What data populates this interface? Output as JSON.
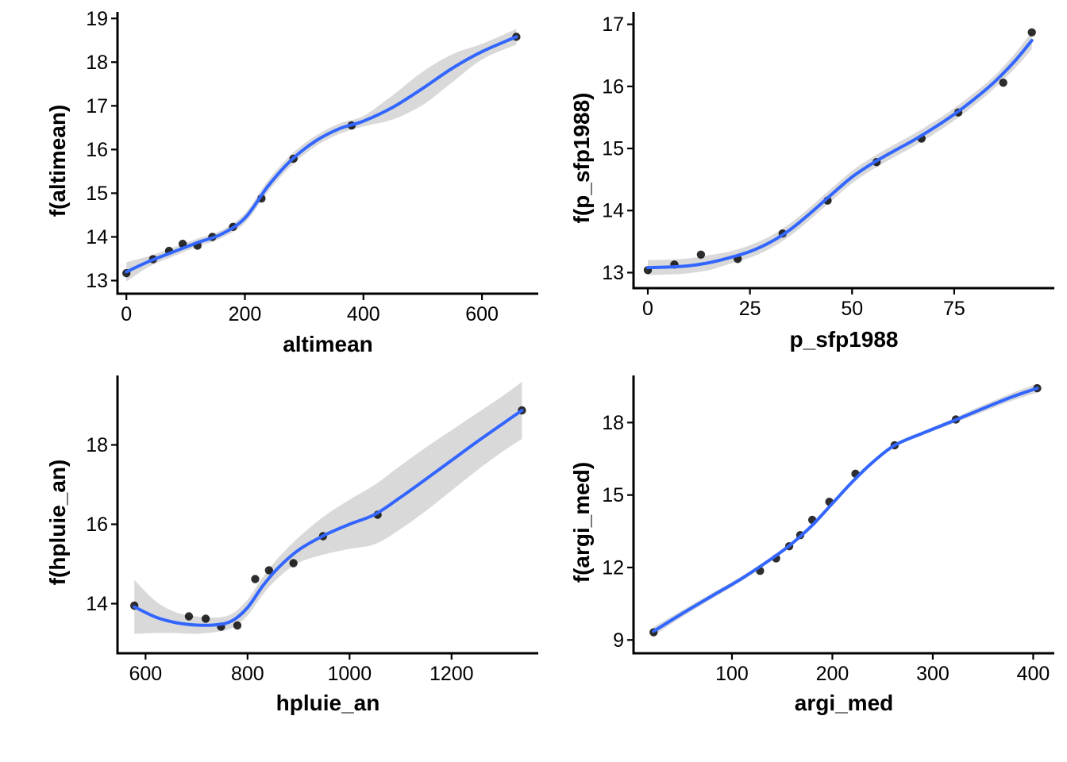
{
  "chart_data": [
    {
      "type": "scatter",
      "xlabel": "altimean",
      "ylabel": "f(altimean)",
      "xlim": [
        -15,
        695
      ],
      "ylim": [
        12.7,
        19.15
      ],
      "xticks": [
        0,
        200,
        400,
        600
      ],
      "yticks": [
        13,
        14,
        15,
        16,
        17,
        18,
        19
      ],
      "points": {
        "x": [
          0,
          45,
          72,
          95,
          120,
          145,
          180,
          228,
          282,
          380,
          658
        ],
        "y": [
          13.17,
          13.49,
          13.68,
          13.84,
          13.8,
          14.0,
          14.23,
          14.88,
          15.79,
          16.55,
          18.58
        ]
      },
      "smooth": {
        "x": [
          0,
          40,
          80,
          120,
          160,
          200,
          240,
          280,
          320,
          360,
          400,
          450,
          500,
          550,
          600,
          658
        ],
        "y": [
          13.2,
          13.45,
          13.66,
          13.87,
          14.06,
          14.43,
          15.18,
          15.78,
          16.2,
          16.48,
          16.65,
          16.97,
          17.4,
          17.86,
          18.24,
          18.58
        ]
      },
      "band_halfwidth": [
        0.22,
        0.12,
        0.1,
        0.09,
        0.09,
        0.11,
        0.13,
        0.13,
        0.12,
        0.12,
        0.12,
        0.28,
        0.38,
        0.32,
        0.18,
        0.18
      ],
      "line_color": "#3366ff",
      "band_color": "#d9d9d9"
    },
    {
      "type": "scatter",
      "xlabel": "p_sfp1988",
      "ylabel": "f(p_sfp1988)",
      "xlim": [
        -3.5,
        99.5
      ],
      "ylim": [
        12.75,
        17.2
      ],
      "xticks": [
        0,
        25,
        50,
        75
      ],
      "yticks": [
        13,
        14,
        15,
        16,
        17
      ],
      "points": {
        "x": [
          0,
          6.5,
          13,
          22,
          33,
          44,
          56,
          67,
          76,
          87,
          94
        ],
        "y": [
          13.04,
          13.13,
          13.29,
          13.22,
          13.63,
          14.16,
          14.78,
          15.16,
          15.58,
          16.06,
          16.87
        ]
      },
      "smooth": {
        "x": [
          0,
          5,
          10,
          15,
          20,
          25,
          30,
          35,
          40,
          45,
          50,
          55,
          60,
          65,
          70,
          75,
          80,
          85,
          90,
          94
        ],
        "y": [
          13.08,
          13.09,
          13.11,
          13.16,
          13.24,
          13.34,
          13.49,
          13.7,
          13.97,
          14.26,
          14.54,
          14.76,
          14.95,
          15.13,
          15.33,
          15.55,
          15.8,
          16.08,
          16.42,
          16.74
        ]
      },
      "band_halfwidth": [
        0.12,
        0.12,
        0.12,
        0.12,
        0.1,
        0.1,
        0.1,
        0.1,
        0.1,
        0.1,
        0.1,
        0.1,
        0.1,
        0.1,
        0.1,
        0.1,
        0.1,
        0.1,
        0.12,
        0.14
      ],
      "line_color": "#3366ff",
      "band_color": "#d9d9d9"
    },
    {
      "type": "scatter",
      "xlabel": "hpluie_an",
      "ylabel": "f(hpluie_an)",
      "xlim": [
        545,
        1370
      ],
      "ylim": [
        12.75,
        19.75
      ],
      "xticks": [
        600,
        800,
        1000,
        1200
      ],
      "yticks": [
        14,
        16,
        18
      ],
      "points": {
        "x": [
          578,
          685,
          718,
          748,
          780,
          815,
          842,
          890,
          948,
          1055,
          1338
        ],
        "y": [
          13.95,
          13.68,
          13.62,
          13.42,
          13.45,
          14.62,
          14.84,
          15.02,
          15.7,
          16.24,
          18.87
        ]
      },
      "smooth": {
        "x": [
          578,
          620,
          660,
          700,
          740,
          770,
          800,
          830,
          860,
          900,
          950,
          1000,
          1050,
          1100,
          1150,
          1200,
          1250,
          1300,
          1338
        ],
        "y": [
          13.92,
          13.66,
          13.52,
          13.46,
          13.47,
          13.57,
          13.9,
          14.45,
          14.9,
          15.35,
          15.72,
          16.0,
          16.25,
          16.68,
          17.14,
          17.61,
          18.08,
          18.53,
          18.87
        ]
      },
      "band_halfwidth": [
        0.68,
        0.4,
        0.26,
        0.22,
        0.18,
        0.18,
        0.2,
        0.22,
        0.25,
        0.32,
        0.48,
        0.62,
        0.75,
        0.8,
        0.8,
        0.76,
        0.72,
        0.7,
        0.72
      ],
      "line_color": "#3366ff",
      "band_color": "#d9d9d9"
    },
    {
      "type": "scatter",
      "xlabel": "argi_med",
      "ylabel": "f(argi_med)",
      "xlim": [
        2,
        421
      ],
      "ylim": [
        8.45,
        19.95
      ],
      "xticks": [
        100,
        200,
        300,
        400
      ],
      "yticks": [
        9,
        12,
        15,
        18
      ],
      "points": {
        "x": [
          22,
          128,
          144,
          157,
          168,
          180,
          197,
          223,
          262,
          323,
          404
        ],
        "y": [
          9.32,
          11.86,
          12.38,
          12.88,
          13.34,
          13.97,
          14.72,
          15.88,
          17.06,
          18.13,
          19.42
        ]
      },
      "smooth": {
        "x": [
          22,
          50,
          80,
          110,
          140,
          160,
          180,
          200,
          220,
          240,
          262,
          290,
          320,
          350,
          380,
          404
        ],
        "y": [
          9.36,
          10.08,
          10.82,
          11.55,
          12.38,
          13.0,
          13.75,
          14.65,
          15.55,
          16.35,
          17.06,
          17.56,
          18.06,
          18.58,
          19.08,
          19.42
        ]
      },
      "band_halfwidth": [
        0.18,
        0.14,
        0.12,
        0.1,
        0.08,
        0.08,
        0.08,
        0.08,
        0.08,
        0.08,
        0.08,
        0.08,
        0.1,
        0.14,
        0.16,
        0.18
      ],
      "line_color": "#3366ff",
      "band_color": "#d9d9d9"
    }
  ]
}
